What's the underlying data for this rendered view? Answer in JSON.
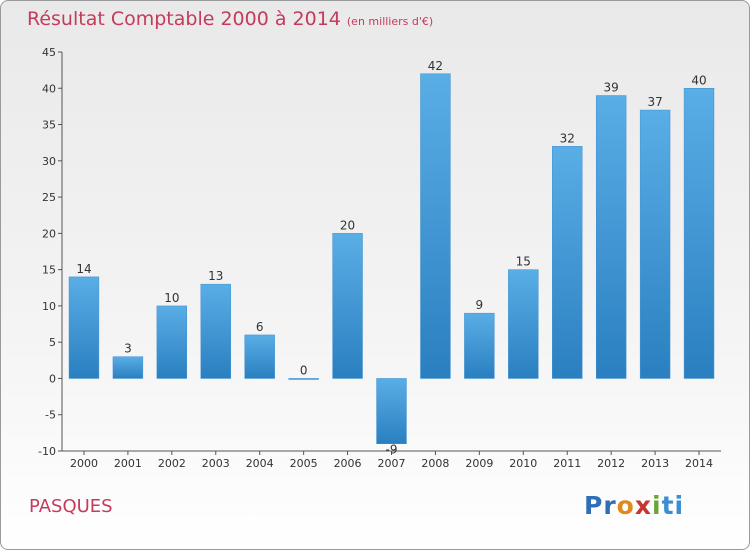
{
  "chart_data": {
    "type": "bar",
    "title": "Résultat Comptable 2000 à 2014",
    "subtitle": "(en milliers d'€)",
    "categories": [
      "2000",
      "2001",
      "2002",
      "2003",
      "2004",
      "2005",
      "2006",
      "2007",
      "2008",
      "2009",
      "2010",
      "2011",
      "2012",
      "2013",
      "2014"
    ],
    "values": [
      14,
      3,
      10,
      13,
      6,
      0,
      20,
      -9,
      42,
      9,
      15,
      32,
      39,
      37,
      40
    ],
    "ylim": [
      -10,
      45
    ],
    "yticks": [
      -10,
      -5,
      0,
      5,
      10,
      15,
      20,
      25,
      30,
      35,
      40,
      45
    ],
    "xlabel": "",
    "ylabel": "",
    "grid": false,
    "bar_color_light": "#5aaee6",
    "bar_color_dark": "#2a7fc0"
  },
  "commune": "PASQUES",
  "logo": {
    "p1": "Pr",
    "p2": "o",
    "p3": "x",
    "p4": "i",
    "p5": "ti"
  }
}
